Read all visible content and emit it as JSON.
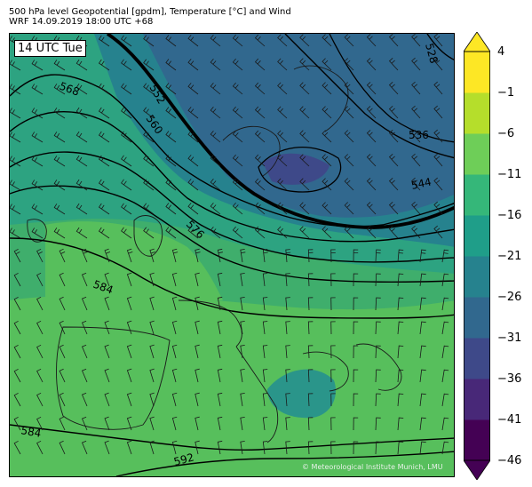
{
  "header": {
    "line1": "500 hPa level Geopotential [gpdm], Temperature [°C] and Wind",
    "line2": "WRF 14.09.2019 18:00 UTC +68"
  },
  "time_label": "14 UTC Tue",
  "copyright": "© Meteorological Institute Munich, LMU",
  "colorbar": {
    "ticks": [
      "4",
      "−1",
      "−6",
      "−11",
      "−16",
      "−21",
      "−26",
      "−31",
      "−36",
      "−41",
      "−46"
    ],
    "colors": [
      "#440154",
      "#482878",
      "#3e4989",
      "#31688e",
      "#26828e",
      "#1f9e89",
      "#35b779",
      "#6ece58",
      "#b5de2b",
      "#fde725"
    ]
  },
  "contour_labels": [
    "568",
    "552",
    "560",
    "536",
    "544",
    "576",
    "584",
    "584",
    "592",
    "528"
  ],
  "colors": {
    "temp_cold": "#3d5a8d",
    "temp_mid": "#28908c",
    "temp_warm": "#2fb07a",
    "temp_warmest": "#56c05f"
  }
}
